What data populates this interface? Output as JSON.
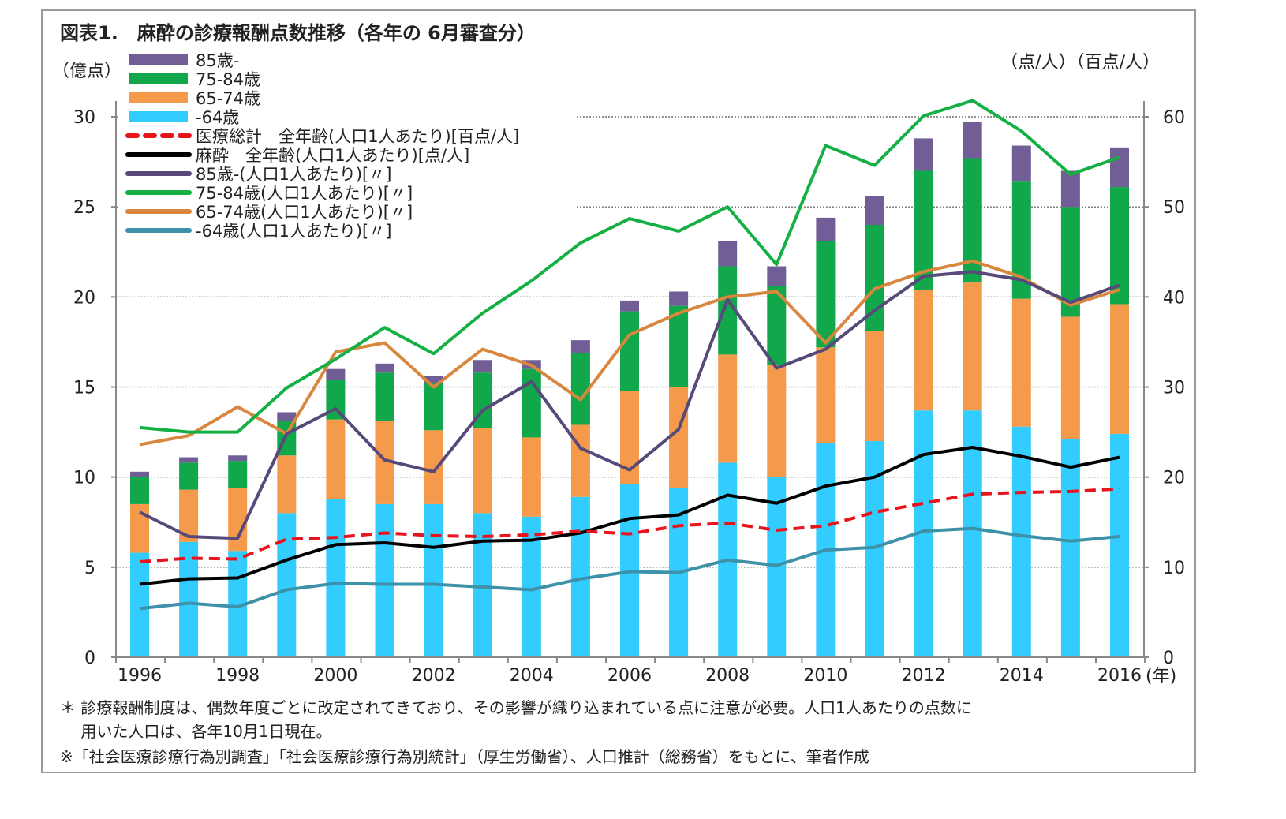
{
  "chart_data": {
    "type": "bar+line",
    "title": "図表1.　麻酔の診療報酬点数推移（各年の 6月審査分）",
    "ylabel_left": "（億点）",
    "ylabel_right": "（点/人）（百点/人）",
    "xlabel": "(年)",
    "ylim_left": [
      0,
      30
    ],
    "ylim_right": [
      0,
      60
    ],
    "yticks_left": [
      "0",
      "5",
      "10",
      "15",
      "20",
      "25",
      "30"
    ],
    "yticks_right": [
      "0",
      "10",
      "20",
      "30",
      "40",
      "50",
      "60"
    ],
    "xtick_labels": [
      "1996",
      "1998",
      "2000",
      "2002",
      "2004",
      "2006",
      "2008",
      "2010",
      "2012",
      "2014",
      "2016"
    ],
    "grid": "horizontal dotted",
    "legend_placement": "top-left",
    "categories": [
      1996,
      1997,
      1998,
      1999,
      2000,
      2001,
      2002,
      2003,
      2004,
      2005,
      2006,
      2007,
      2008,
      2009,
      2010,
      2011,
      2012,
      2013,
      2014,
      2015,
      2016
    ],
    "bar_series": [
      {
        "name": "-64歳",
        "color": "#33ccff",
        "values": [
          5.8,
          6.4,
          5.9,
          8.0,
          8.8,
          8.5,
          8.5,
          8.0,
          7.8,
          8.9,
          9.6,
          9.4,
          10.8,
          10.0,
          11.9,
          12.0,
          13.7,
          13.7,
          12.8,
          12.1,
          12.4
        ]
      },
      {
        "name": "65-74歳",
        "color": "#f59a4a",
        "values": [
          2.7,
          2.9,
          3.5,
          3.2,
          4.4,
          4.6,
          4.1,
          4.7,
          4.4,
          4.0,
          5.2,
          5.6,
          6.0,
          6.2,
          5.3,
          6.1,
          6.7,
          7.1,
          7.1,
          6.8,
          7.2
        ]
      },
      {
        "name": "75-84歳",
        "color": "#10a84a",
        "values": [
          1.5,
          1.5,
          1.5,
          1.9,
          2.2,
          2.7,
          2.6,
          3.1,
          3.8,
          4.0,
          4.4,
          4.5,
          4.9,
          4.4,
          5.9,
          5.9,
          6.6,
          6.9,
          6.5,
          6.1,
          6.5
        ]
      },
      {
        "name": "85歳-",
        "color": "#725e96",
        "values": [
          0.3,
          0.3,
          0.3,
          0.5,
          0.6,
          0.5,
          0.4,
          0.7,
          0.5,
          0.7,
          0.6,
          0.8,
          1.4,
          1.1,
          1.3,
          1.6,
          1.8,
          2.0,
          2.0,
          2.0,
          2.2
        ]
      }
    ],
    "line_series": [
      {
        "name": "医療総計　全年齢(人口1人あたり)[百点/人]",
        "color": "#e8141c",
        "dash": true,
        "values": [
          10.6,
          11.0,
          10.9,
          13.1,
          13.3,
          13.8,
          13.5,
          13.4,
          13.6,
          14.0,
          13.7,
          14.6,
          14.9,
          14.1,
          14.6,
          16.1,
          17.1,
          18.1,
          18.3,
          18.4,
          18.7
        ]
      },
      {
        "name": "麻酔　全年齢(人口1人あたり)[点/人]",
        "color": "#000000",
        "values": [
          8.1,
          8.7,
          8.8,
          10.8,
          12.5,
          12.7,
          12.2,
          12.9,
          13.0,
          13.8,
          15.4,
          15.8,
          18.0,
          17.1,
          19.0,
          20.0,
          22.5,
          23.3,
          22.3,
          21.1,
          22.2
        ]
      },
      {
        "name": "85歳-(人口1人あたり)[〃]",
        "color": "#574a7a",
        "values": [
          16.1,
          13.4,
          13.2,
          24.8,
          27.6,
          21.9,
          20.6,
          27.4,
          30.6,
          23.2,
          20.8,
          25.3,
          39.7,
          32.1,
          34.2,
          38.5,
          42.3,
          42.8,
          41.9,
          39.4,
          41.3
        ]
      },
      {
        "name": "75-84歳(人口1人あたり)[〃]",
        "color": "#14b044",
        "values": [
          25.5,
          25.0,
          25.0,
          29.9,
          33.1,
          36.6,
          33.7,
          38.2,
          41.8,
          46.0,
          48.7,
          47.3,
          50.0,
          43.6,
          56.8,
          54.6,
          60.1,
          61.8,
          58.4,
          53.6,
          55.5
        ]
      },
      {
        "name": "65-74歳(人口1人あたり)[〃]",
        "color": "#d9873f",
        "values": [
          23.6,
          24.6,
          27.8,
          24.8,
          33.9,
          34.9,
          30.0,
          34.2,
          32.4,
          28.6,
          35.8,
          38.2,
          40.0,
          40.6,
          34.9,
          40.9,
          42.8,
          44.0,
          42.2,
          39.1,
          40.8
        ]
      },
      {
        "name": "-64歳(人口1人あたり)[〃]",
        "color": "#3d91a8",
        "values": [
          5.4,
          6.0,
          5.6,
          7.5,
          8.2,
          8.1,
          8.1,
          7.8,
          7.5,
          8.7,
          9.5,
          9.4,
          10.8,
          10.2,
          11.9,
          12.2,
          14.0,
          14.3,
          13.5,
          12.9,
          13.4
        ]
      }
    ]
  },
  "notes": [
    "＊ 診療報酬制度は、偶数年度ごとに改定されてきており、その影響が織り込まれている点に注意が必要。人口1人あたりの点数に",
    "　 用いた人口は、各年10月1日現在。",
    "※「社会医療診療行為別調査」「社会医療診療行為別統計」（厚生労働省）、人口推計（総務省）をもとに、筆者作成"
  ]
}
